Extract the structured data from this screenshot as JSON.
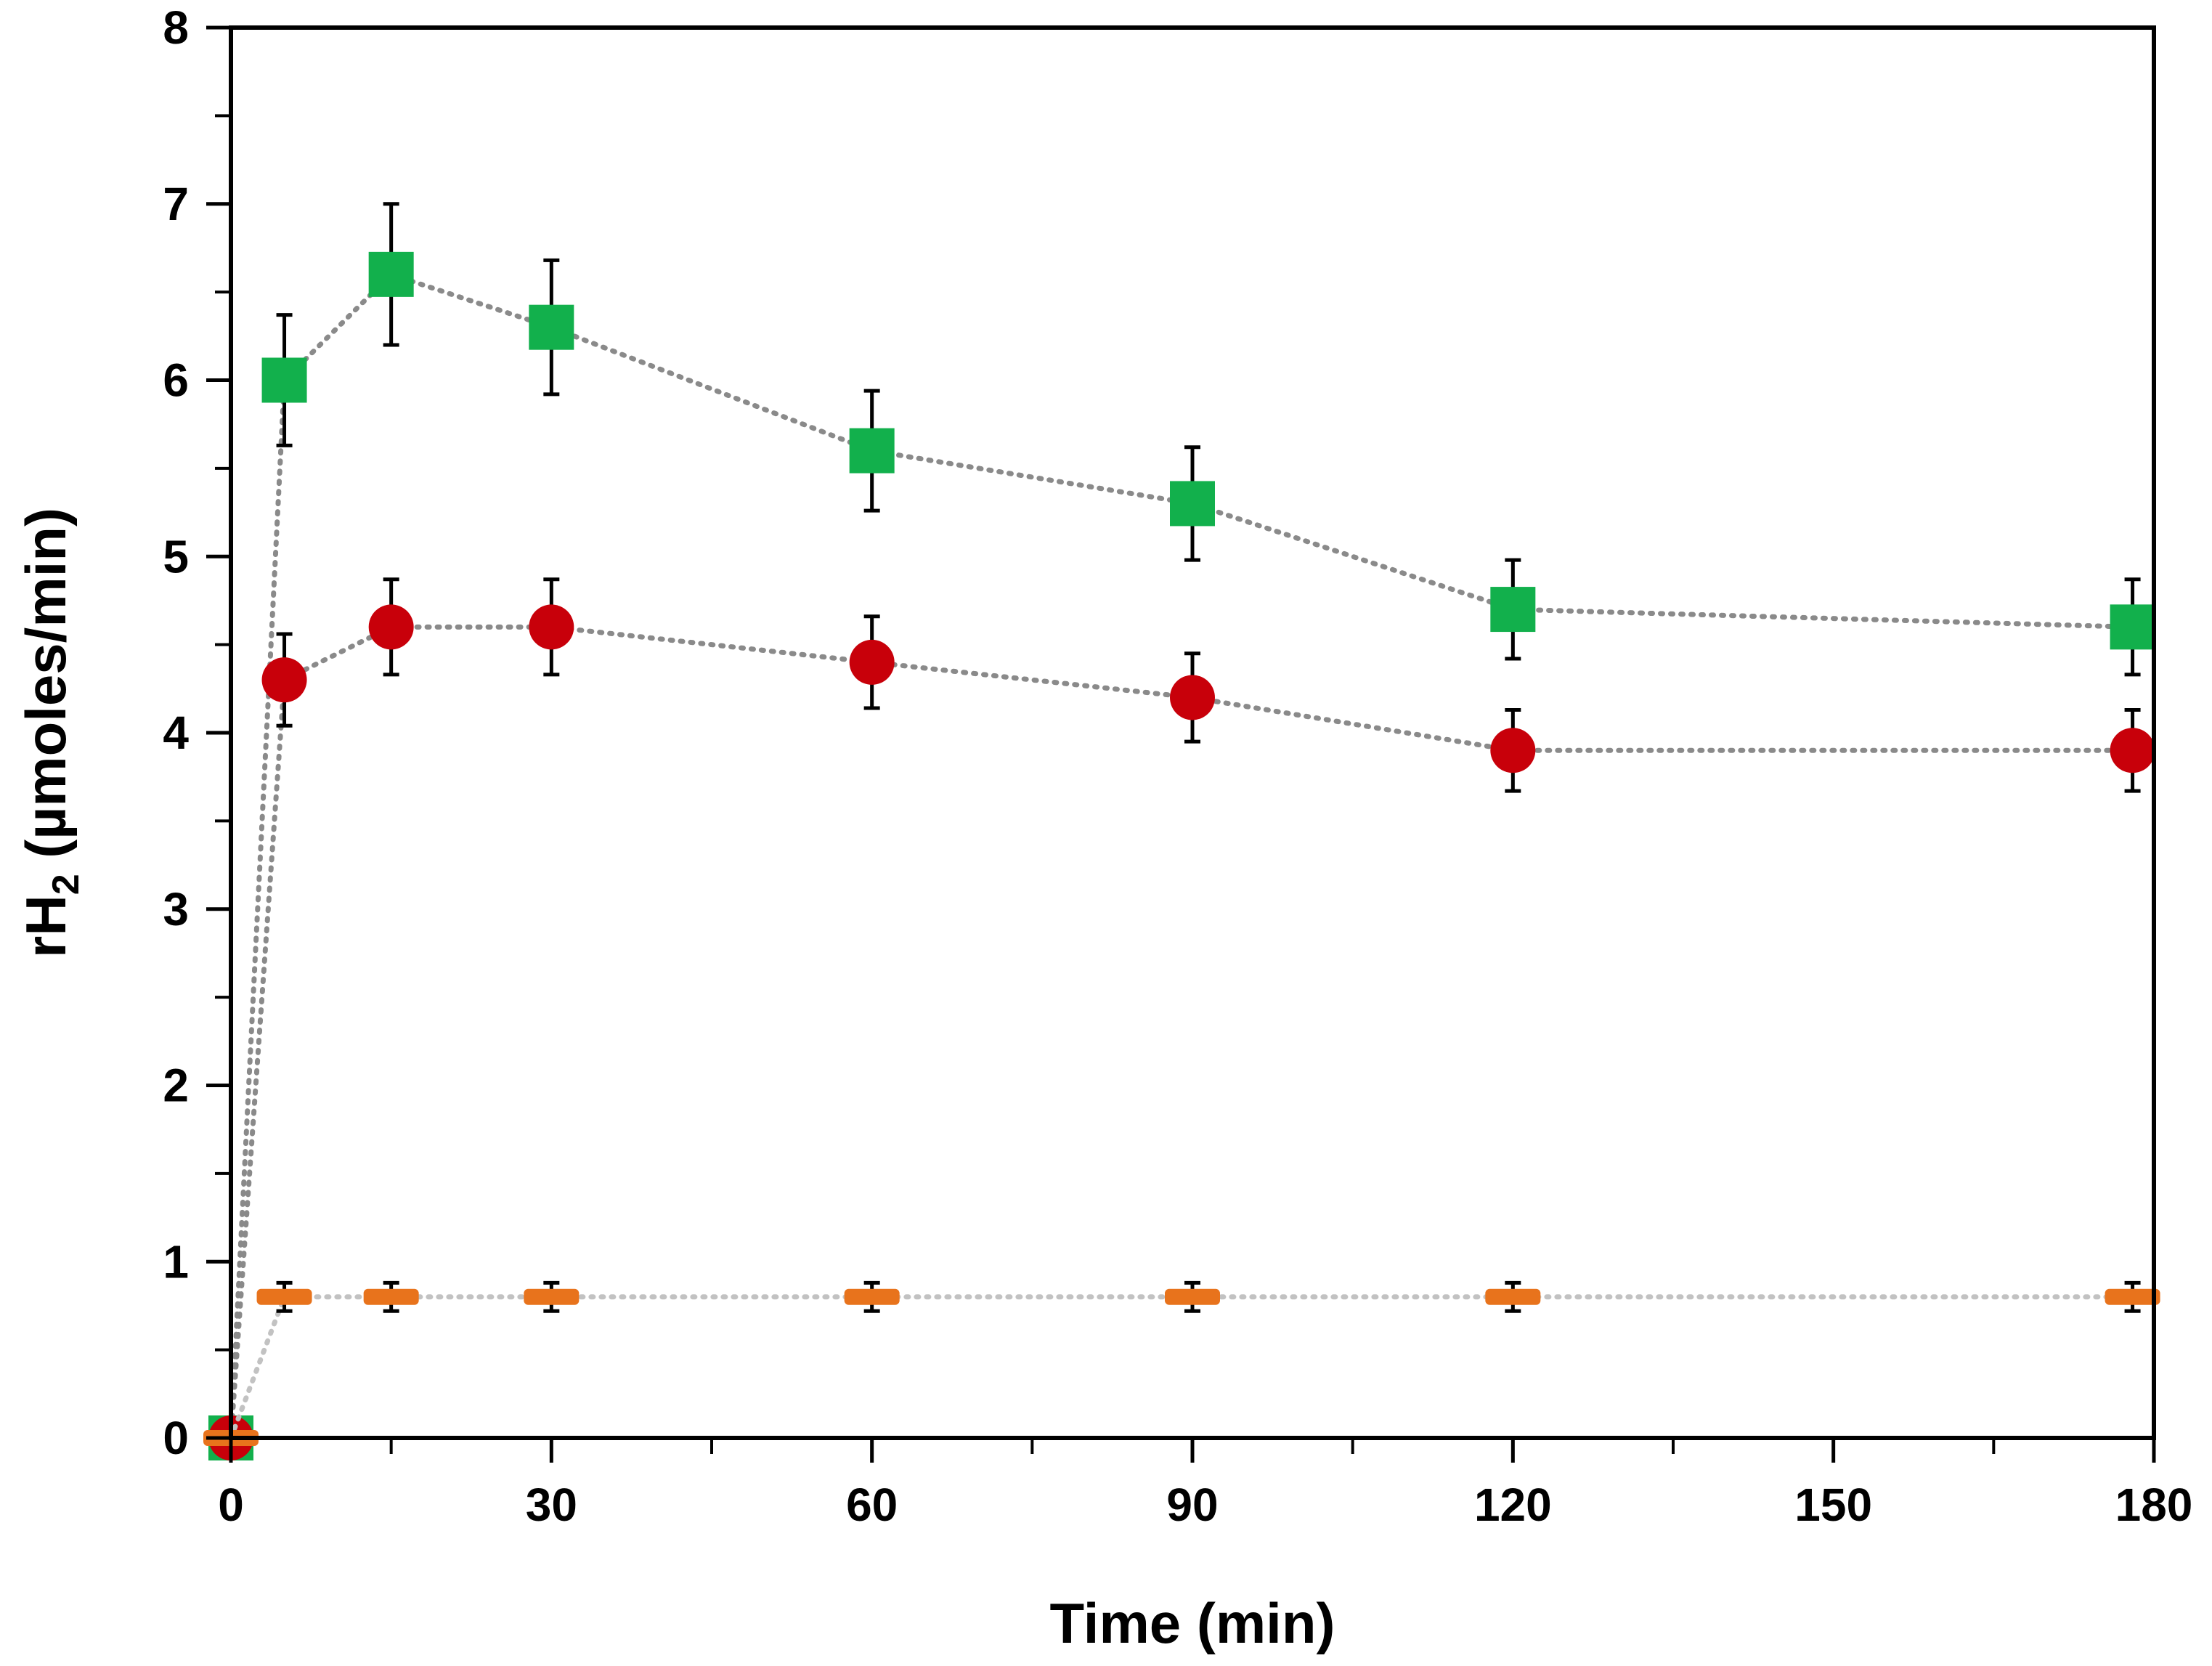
{
  "chart_data": {
    "type": "scatter",
    "xlabel": "Time (min)",
    "ylabel": {
      "main": "rH",
      "subscript": "2",
      "rest": " (µmoles/min)"
    },
    "xlim": [
      0,
      180
    ],
    "ylim": [
      0,
      8
    ],
    "x_ticks": [
      0,
      30,
      60,
      90,
      120,
      150,
      180
    ],
    "x_minor_step": 15,
    "y_ticks": [
      0,
      1,
      2,
      3,
      4,
      5,
      6,
      7,
      8
    ],
    "y_minor_step": 0.5,
    "grid": false,
    "legend": "none",
    "series": [
      {
        "marker": "square",
        "color": "#12b04c",
        "line_color": "#8a8a8a",
        "x": [
          0,
          5,
          15,
          30,
          60,
          90,
          120,
          178
        ],
        "y": [
          0,
          6.0,
          6.6,
          6.3,
          5.6,
          5.3,
          4.7,
          4.6
        ],
        "error": [
          0,
          0.37,
          0.4,
          0.38,
          0.34,
          0.32,
          0.28,
          0.27
        ]
      },
      {
        "marker": "circle",
        "color": "#c8000a",
        "line_color": "#8a8a8a",
        "x": [
          0,
          5,
          15,
          30,
          60,
          90,
          120,
          178
        ],
        "y": [
          0,
          4.3,
          4.6,
          4.6,
          4.4,
          4.2,
          3.9,
          3.9
        ],
        "error": [
          0,
          0.26,
          0.27,
          0.27,
          0.26,
          0.25,
          0.23,
          0.23
        ]
      },
      {
        "marker": "dash",
        "color": "#e8731c",
        "line_color": "#c2c2c2",
        "x": [
          0,
          5,
          15,
          30,
          60,
          90,
          120,
          178
        ],
        "y": [
          0,
          0.8,
          0.8,
          0.8,
          0.8,
          0.8,
          0.8,
          0.8
        ],
        "error": [
          0,
          0.08,
          0.08,
          0.08,
          0.08,
          0.08,
          0.08,
          0.08
        ]
      }
    ]
  }
}
